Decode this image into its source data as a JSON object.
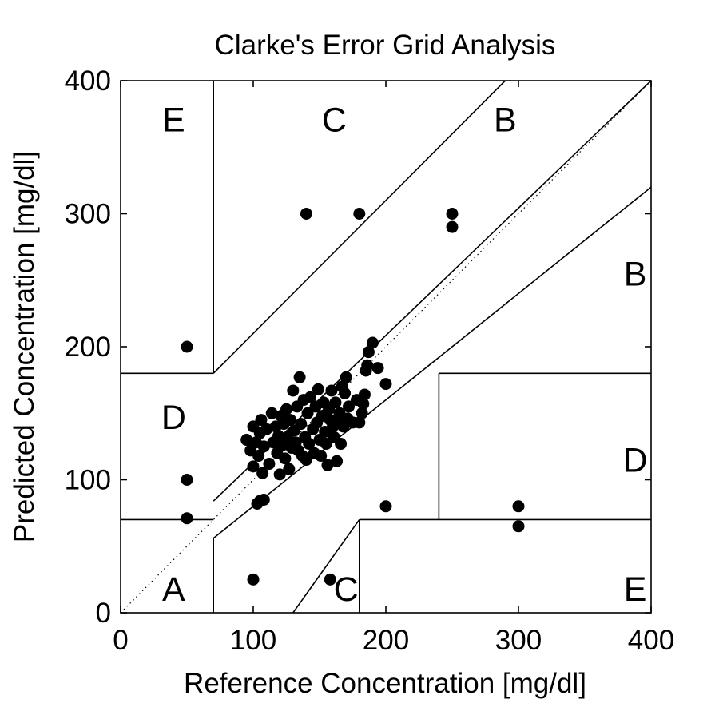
{
  "chart_data": {
    "type": "scatter",
    "title": "Clarke's Error Grid Analysis",
    "xlabel": "Reference Concentration [mg/dl]",
    "ylabel": "Predicted Concentration [mg/dl]",
    "xlim": [
      0,
      400
    ],
    "ylim": [
      0,
      400
    ],
    "xticks": [
      "0",
      "100",
      "200",
      "300",
      "400"
    ],
    "yticks": [
      "0",
      "100",
      "200",
      "300",
      "400"
    ],
    "grid": false,
    "identity_line": true,
    "zone_boundaries": [
      [
        [
          0,
          70
        ],
        [
          70,
          70
        ]
      ],
      [
        [
          70,
          0
        ],
        [
          70,
          56
        ]
      ],
      [
        [
          70,
          56
        ],
        [
          400,
          320
        ]
      ],
      [
        [
          70,
          84
        ],
        [
          400,
          400
        ]
      ],
      [
        [
          70,
          180
        ],
        [
          70,
          400
        ]
      ],
      [
        [
          0,
          180
        ],
        [
          70,
          180
        ]
      ],
      [
        [
          70,
          180
        ],
        [
          290,
          400
        ]
      ],
      [
        [
          130,
          0
        ],
        [
          180,
          70
        ]
      ],
      [
        [
          180,
          70
        ],
        [
          400,
          70
        ]
      ],
      [
        [
          180,
          0
        ],
        [
          180,
          70
        ]
      ],
      [
        [
          240,
          70
        ],
        [
          240,
          180
        ]
      ],
      [
        [
          240,
          180
        ],
        [
          400,
          180
        ]
      ]
    ],
    "zones": [
      {
        "label": "A",
        "x": 40,
        "y": 18
      },
      {
        "label": "B",
        "x": 290,
        "y": 371
      },
      {
        "label": "B",
        "x": 388,
        "y": 255
      },
      {
        "label": "C",
        "x": 161,
        "y": 371
      },
      {
        "label": "C",
        "x": 170,
        "y": 18
      },
      {
        "label": "D",
        "x": 40,
        "y": 147
      },
      {
        "label": "D",
        "x": 388,
        "y": 115
      },
      {
        "label": "E",
        "x": 40,
        "y": 371
      },
      {
        "label": "E",
        "x": 388,
        "y": 18
      }
    ],
    "points": [
      [
        50,
        200
      ],
      [
        50,
        100
      ],
      [
        50,
        71
      ],
      [
        100,
        25
      ],
      [
        158,
        25
      ],
      [
        200,
        80
      ],
      [
        300,
        80
      ],
      [
        300,
        65
      ],
      [
        140,
        300
      ],
      [
        180,
        300
      ],
      [
        250,
        300
      ],
      [
        250,
        290
      ],
      [
        95,
        130
      ],
      [
        98,
        122
      ],
      [
        100,
        140
      ],
      [
        100,
        110
      ],
      [
        102,
        128
      ],
      [
        104,
        118
      ],
      [
        105,
        135
      ],
      [
        106,
        145
      ],
      [
        107,
        105
      ],
      [
        108,
        125
      ],
      [
        110,
        138
      ],
      [
        112,
        112
      ],
      [
        114,
        150
      ],
      [
        115,
        128
      ],
      [
        117,
        140
      ],
      [
        118,
        120
      ],
      [
        119,
        133
      ],
      [
        120,
        104
      ],
      [
        121,
        148
      ],
      [
        122,
        126
      ],
      [
        123,
        142
      ],
      [
        124,
        116
      ],
      [
        125,
        153
      ],
      [
        126,
        132
      ],
      [
        127,
        108
      ],
      [
        128,
        145
      ],
      [
        129,
        124
      ],
      [
        130,
        167
      ],
      [
        131,
        137
      ],
      [
        132,
        128
      ],
      [
        133,
        155
      ],
      [
        134,
        122
      ],
      [
        135,
        177
      ],
      [
        136,
        142
      ],
      [
        137,
        118
      ],
      [
        138,
        160
      ],
      [
        139,
        132
      ],
      [
        140,
        115
      ],
      [
        141,
        150
      ],
      [
        142,
        127
      ],
      [
        143,
        162
      ],
      [
        145,
        138
      ],
      [
        146,
        120
      ],
      [
        147,
        155
      ],
      [
        148,
        143
      ],
      [
        149,
        168
      ],
      [
        150,
        130
      ],
      [
        151,
        118
      ],
      [
        152,
        148
      ],
      [
        153,
        158
      ],
      [
        154,
        136
      ],
      [
        155,
        127
      ],
      [
        156,
        111
      ],
      [
        157,
        153
      ],
      [
        158,
        145
      ],
      [
        159,
        167
      ],
      [
        160,
        140
      ],
      [
        161,
        132
      ],
      [
        162,
        158
      ],
      [
        163,
        114
      ],
      [
        164,
        144
      ],
      [
        165,
        150
      ],
      [
        166,
        127
      ],
      [
        167,
        170
      ],
      [
        168,
        140
      ],
      [
        169,
        165
      ],
      [
        170,
        177
      ],
      [
        171,
        146
      ],
      [
        172,
        155
      ],
      [
        175,
        143
      ],
      [
        178,
        160
      ],
      [
        180,
        143
      ],
      [
        182,
        150
      ],
      [
        183,
        157
      ],
      [
        184,
        164
      ],
      [
        185,
        182
      ],
      [
        186,
        186
      ],
      [
        187,
        196
      ],
      [
        190,
        203
      ],
      [
        194,
        184
      ],
      [
        200,
        172
      ],
      [
        103,
        82
      ],
      [
        105,
        84
      ],
      [
        108,
        85
      ]
    ]
  }
}
